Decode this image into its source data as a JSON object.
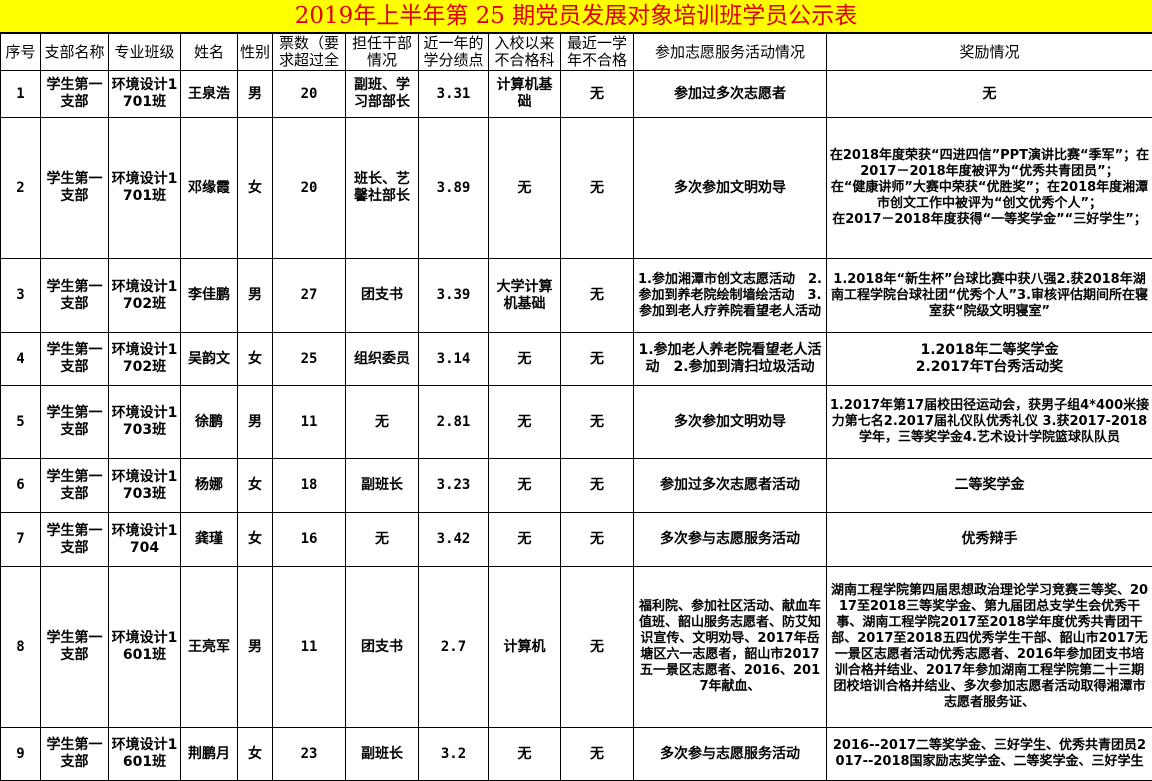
{
  "title": "2019年上半年第 25 期党员发展对象培训班学员公示表",
  "headers": [
    "序号",
    "支部名称",
    "专业班级",
    "姓名",
    "性别",
    "票数（要求超过全",
    "担任干部情况",
    "近一年的学分绩点",
    "入校以来不合格科",
    "最近一学年不合格",
    "参加志愿服务活动情况",
    "奖励情况"
  ],
  "rows": [
    [
      "1",
      "学生第一支部",
      "环境设计1701班",
      "王泉浩",
      "男",
      "20",
      "副班、学习部部长",
      "3.31",
      "计算机基础",
      "无",
      "参加过多次志愿者",
      "无"
    ],
    [
      "2",
      "学生第一支部",
      "环境设计1701班",
      "邓缘霞",
      "女",
      "20",
      "班长、艺馨社部长",
      "3.89",
      "无",
      "无",
      "多次参加文明劝导",
      "在2018年度荣获“四进四信”PPT演讲比赛“季军”；在2017－2018年度被评为“优秀共青团员”；\n在“健康讲师”大赛中荣获“优胜奖”；在2018年度湘潭市创文工作中被评为“创文优秀个人”；\n在2017－2018年度获得“一等奖学金”“三好学生”；"
    ],
    [
      "3",
      "学生第一支部",
      "环境设计1702班",
      "李佳鹏",
      "男",
      "27",
      "团支书",
      "3.39",
      "大学计算机基础",
      "无",
      "1.参加湘潭市创文志愿活动　2.参加到养老院绘制墙绘活动　3.参加到老人疗养院看望老人活动",
      "1.2018年“新生杯”台球比赛中获八强2.获2018年湖南工程学院台球社团“优秀个人”3.审核评估期间所在寝室获“院级文明寝室”"
    ],
    [
      "4",
      "学生第一支部",
      "环境设计1702班",
      "吴韵文",
      "女",
      "25",
      "组织委员",
      "3.14",
      "无",
      "无",
      "1.参加老人养老院看望老人活动　2.参加到清扫垃圾活动",
      "1.2018年二等奖学金\n2.2017年T台秀活动奖"
    ],
    [
      "5",
      "学生第一支部",
      "环境设计1703班",
      "徐鹏",
      "男",
      "11",
      "无",
      "2.81",
      "无",
      "无",
      "多次参加文明劝导",
      "1.2017年第17届校田径运动会，获男子组4*400米接力第七名2.2017届礼仪队优秀礼仪 3.获2017-2018学年，三等奖学金4.艺术设计学院篮球队队员"
    ],
    [
      "6",
      "学生第一支部",
      "环境设计1703班",
      "杨娜",
      "女",
      "18",
      "副班长",
      "3.23",
      "无",
      "无",
      "参加过多次志愿者活动",
      "二等奖学金"
    ],
    [
      "7",
      "学生第一支部",
      "环境设计1704",
      "龚瑾",
      "女",
      "16",
      "无",
      "3.42",
      "无",
      "无",
      "多次参与志愿服务活动",
      "优秀辩手"
    ],
    [
      "8",
      "学生第一支部",
      "环境设计1601班",
      "王亮军",
      "男",
      "11",
      "团支书",
      "2.7",
      "计算机",
      "无",
      "福利院、参加社区活动、献血车值班、韶山服务志愿者、防艾知识宣传、文明劝导、2017年岳塘区六一志愿者，韶山市2017五一景区志愿者、2016、2017年献血、",
      "湖南工程学院第四届思想政治理论学习竞赛三等奖、2017至2018三等奖学金、第九届团总支学生会优秀干事、湖南工程学院2017至2018学年度优秀共青团干部、2017至2018五四优秀学生干部、韶山市2017无一景区志愿者活动优秀志愿者、2016年参加团支书培训合格并结业、2017年参加湖南工程学院第二十三期团校培训合格并结业、多次参加志愿者活动取得湘潭市志愿者服务证、"
    ],
    [
      "9",
      "学生第一支部",
      "环境设计1601班",
      "荆鹏月",
      "女",
      "23",
      "副班长",
      "3.2",
      "无",
      "无",
      "多次参与志愿服务活动",
      "2016--2017二等奖学金、三好学生、优秀共青团员2017--2018国家励志奖学金、二等奖学金、三好学生"
    ]
  ],
  "colors": {
    "title_bg": "#ffff00",
    "title_text": "#e00000"
  }
}
